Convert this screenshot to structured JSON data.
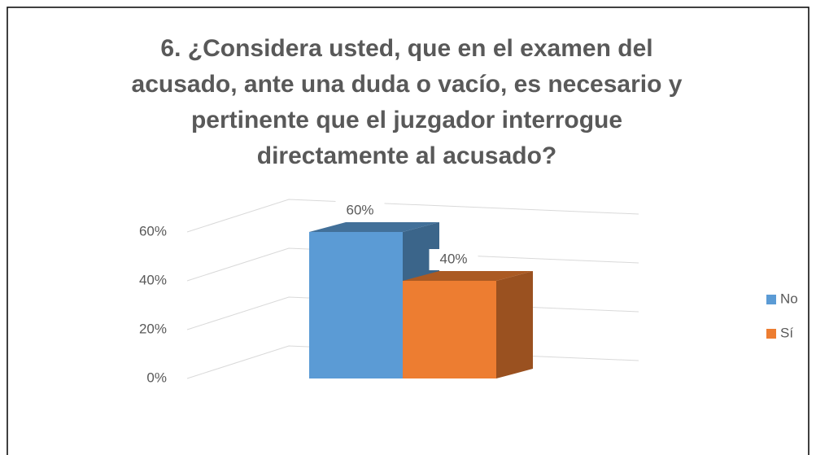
{
  "chart_data": {
    "type": "bar",
    "title": "6. ¿Considera usted, que en el examen del acusado, ante una duda o vacío, es necesario y pertinente que el juzgador interrogue directamente al acusado?",
    "categories": [
      null
    ],
    "series": [
      {
        "name": "No",
        "color": "#5b9bd5",
        "values": [
          60
        ],
        "value_labels": [
          "60%"
        ]
      },
      {
        "name": "Sí",
        "color": "#ed7d31",
        "values": [
          40
        ],
        "value_labels": [
          "40%"
        ]
      }
    ],
    "ylim": [
      0,
      60
    ],
    "yticks": [
      {
        "value": 0,
        "label": "0%"
      },
      {
        "value": 20,
        "label": "20%"
      },
      {
        "value": 40,
        "label": "40%"
      },
      {
        "value": 60,
        "label": "60%"
      }
    ],
    "grid": true,
    "legend": "right"
  }
}
